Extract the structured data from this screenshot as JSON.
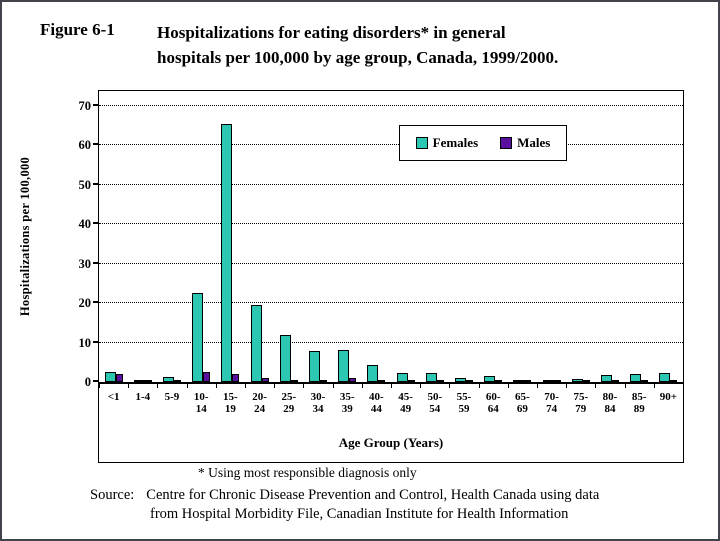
{
  "figure": {
    "label": "Figure 6-1",
    "title_line1": "Hospitalizations for eating disorders* in general",
    "title_line2": "hospitals per 100,000 by age group, Canada, 1999/2000."
  },
  "chart_data": {
    "type": "bar",
    "title": "Hospitalizations for eating disorders in general hospitals per 100,000 by age group, Canada, 1999/2000",
    "categories": [
      "<1",
      "1-4",
      "5-9",
      "10-14",
      "15-19",
      "20-24",
      "25-29",
      "30-34",
      "35-39",
      "40-44",
      "45-49",
      "50-54",
      "55-59",
      "60-64",
      "65-69",
      "70-74",
      "75-79",
      "80-84",
      "85-89",
      "90+"
    ],
    "series": [
      {
        "name": "Females",
        "color": "#2cc7b2",
        "values": [
          2.5,
          0.6,
          1.2,
          22.5,
          65.5,
          19.5,
          11.8,
          7.8,
          8.0,
          4.2,
          2.2,
          2.3,
          1.0,
          1.5,
          0.4,
          0.5,
          0.8,
          1.8,
          2.1,
          2.4
        ]
      },
      {
        "name": "Males",
        "color": "#5b0f9e",
        "values": [
          2.1,
          0.5,
          0.3,
          2.6,
          2.0,
          0.9,
          0.4,
          0.3,
          0.9,
          0.3,
          0.3,
          0.2,
          0.2,
          0.3,
          0.2,
          0.4,
          0.3,
          0.3,
          0.2,
          0.1
        ]
      }
    ],
    "xlabel": "Age Group (Years)",
    "ylabel": "Hospitalizations per 100,000",
    "ylim": [
      0,
      70
    ],
    "ytick_interval": 10,
    "grid": "horizontal dotted",
    "legend_position": "inside plot, top right"
  },
  "footnote": "* Using most responsible diagnosis only",
  "source": {
    "prefix": "Source:",
    "line1": "Centre for Chronic Disease Prevention and Control, Health Canada using data",
    "line2": "from Hospital Morbidity File, Canadian Institute for Health Information"
  }
}
